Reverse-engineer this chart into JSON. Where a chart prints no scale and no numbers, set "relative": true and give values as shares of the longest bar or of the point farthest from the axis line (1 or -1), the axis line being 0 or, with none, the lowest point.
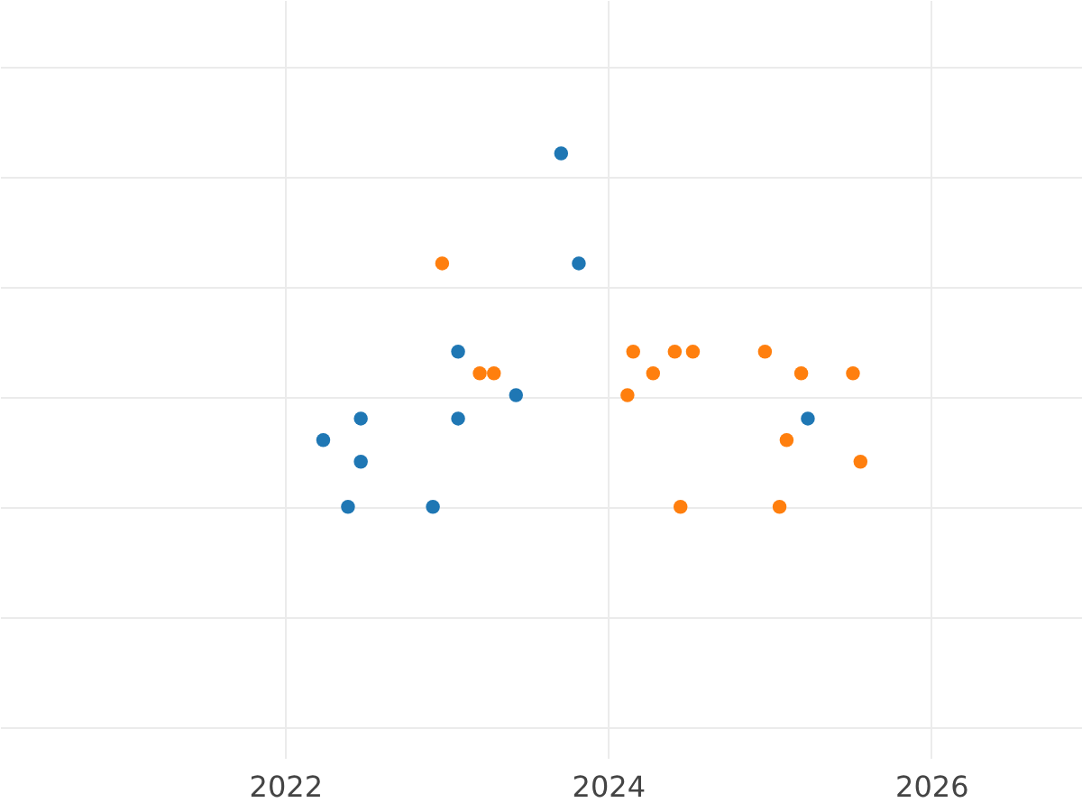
{
  "chart_data": {
    "type": "scatter",
    "relative": true,
    "xlim": [
      "2020-03-27",
      "2026-12-08"
    ],
    "xticks": [
      {
        "value": "2022-01-01",
        "label": "2022"
      },
      {
        "value": "2024-01-01",
        "label": "2024"
      },
      {
        "value": "2026-01-01",
        "label": "2026"
      }
    ],
    "grid": true,
    "legend": false,
    "marker": "circle",
    "series": [
      {
        "color": "#1f77b4",
        "x": [
          "2022-03-28",
          "2022-05-23",
          "2022-06-21",
          "2022-06-21",
          "2022-12-01",
          "2023-01-27",
          "2023-01-27",
          "2023-06-07",
          "2023-09-17",
          "2023-10-27",
          "2025-03-28"
        ],
        "values": [
          0.189,
          0,
          0.25,
          0.128,
          0,
          0.439,
          0.25,
          0.316,
          1,
          0.689,
          0.25
        ]
      },
      {
        "color": "#ff7f0e",
        "x": [
          "2022-12-22",
          "2023-03-17",
          "2023-04-18",
          "2024-02-14",
          "2024-02-27",
          "2024-04-12",
          "2024-05-31",
          "2024-06-13",
          "2024-07-11",
          "2024-12-21",
          "2025-01-23",
          "2025-02-08",
          "2025-03-13",
          "2025-07-08",
          "2025-07-25"
        ],
        "values": [
          0.689,
          0.378,
          0.378,
          0.316,
          0.439,
          0.378,
          0.439,
          0,
          0.439,
          0.439,
          0,
          0.189,
          0.378,
          0.378,
          0.128
        ]
      }
    ]
  }
}
